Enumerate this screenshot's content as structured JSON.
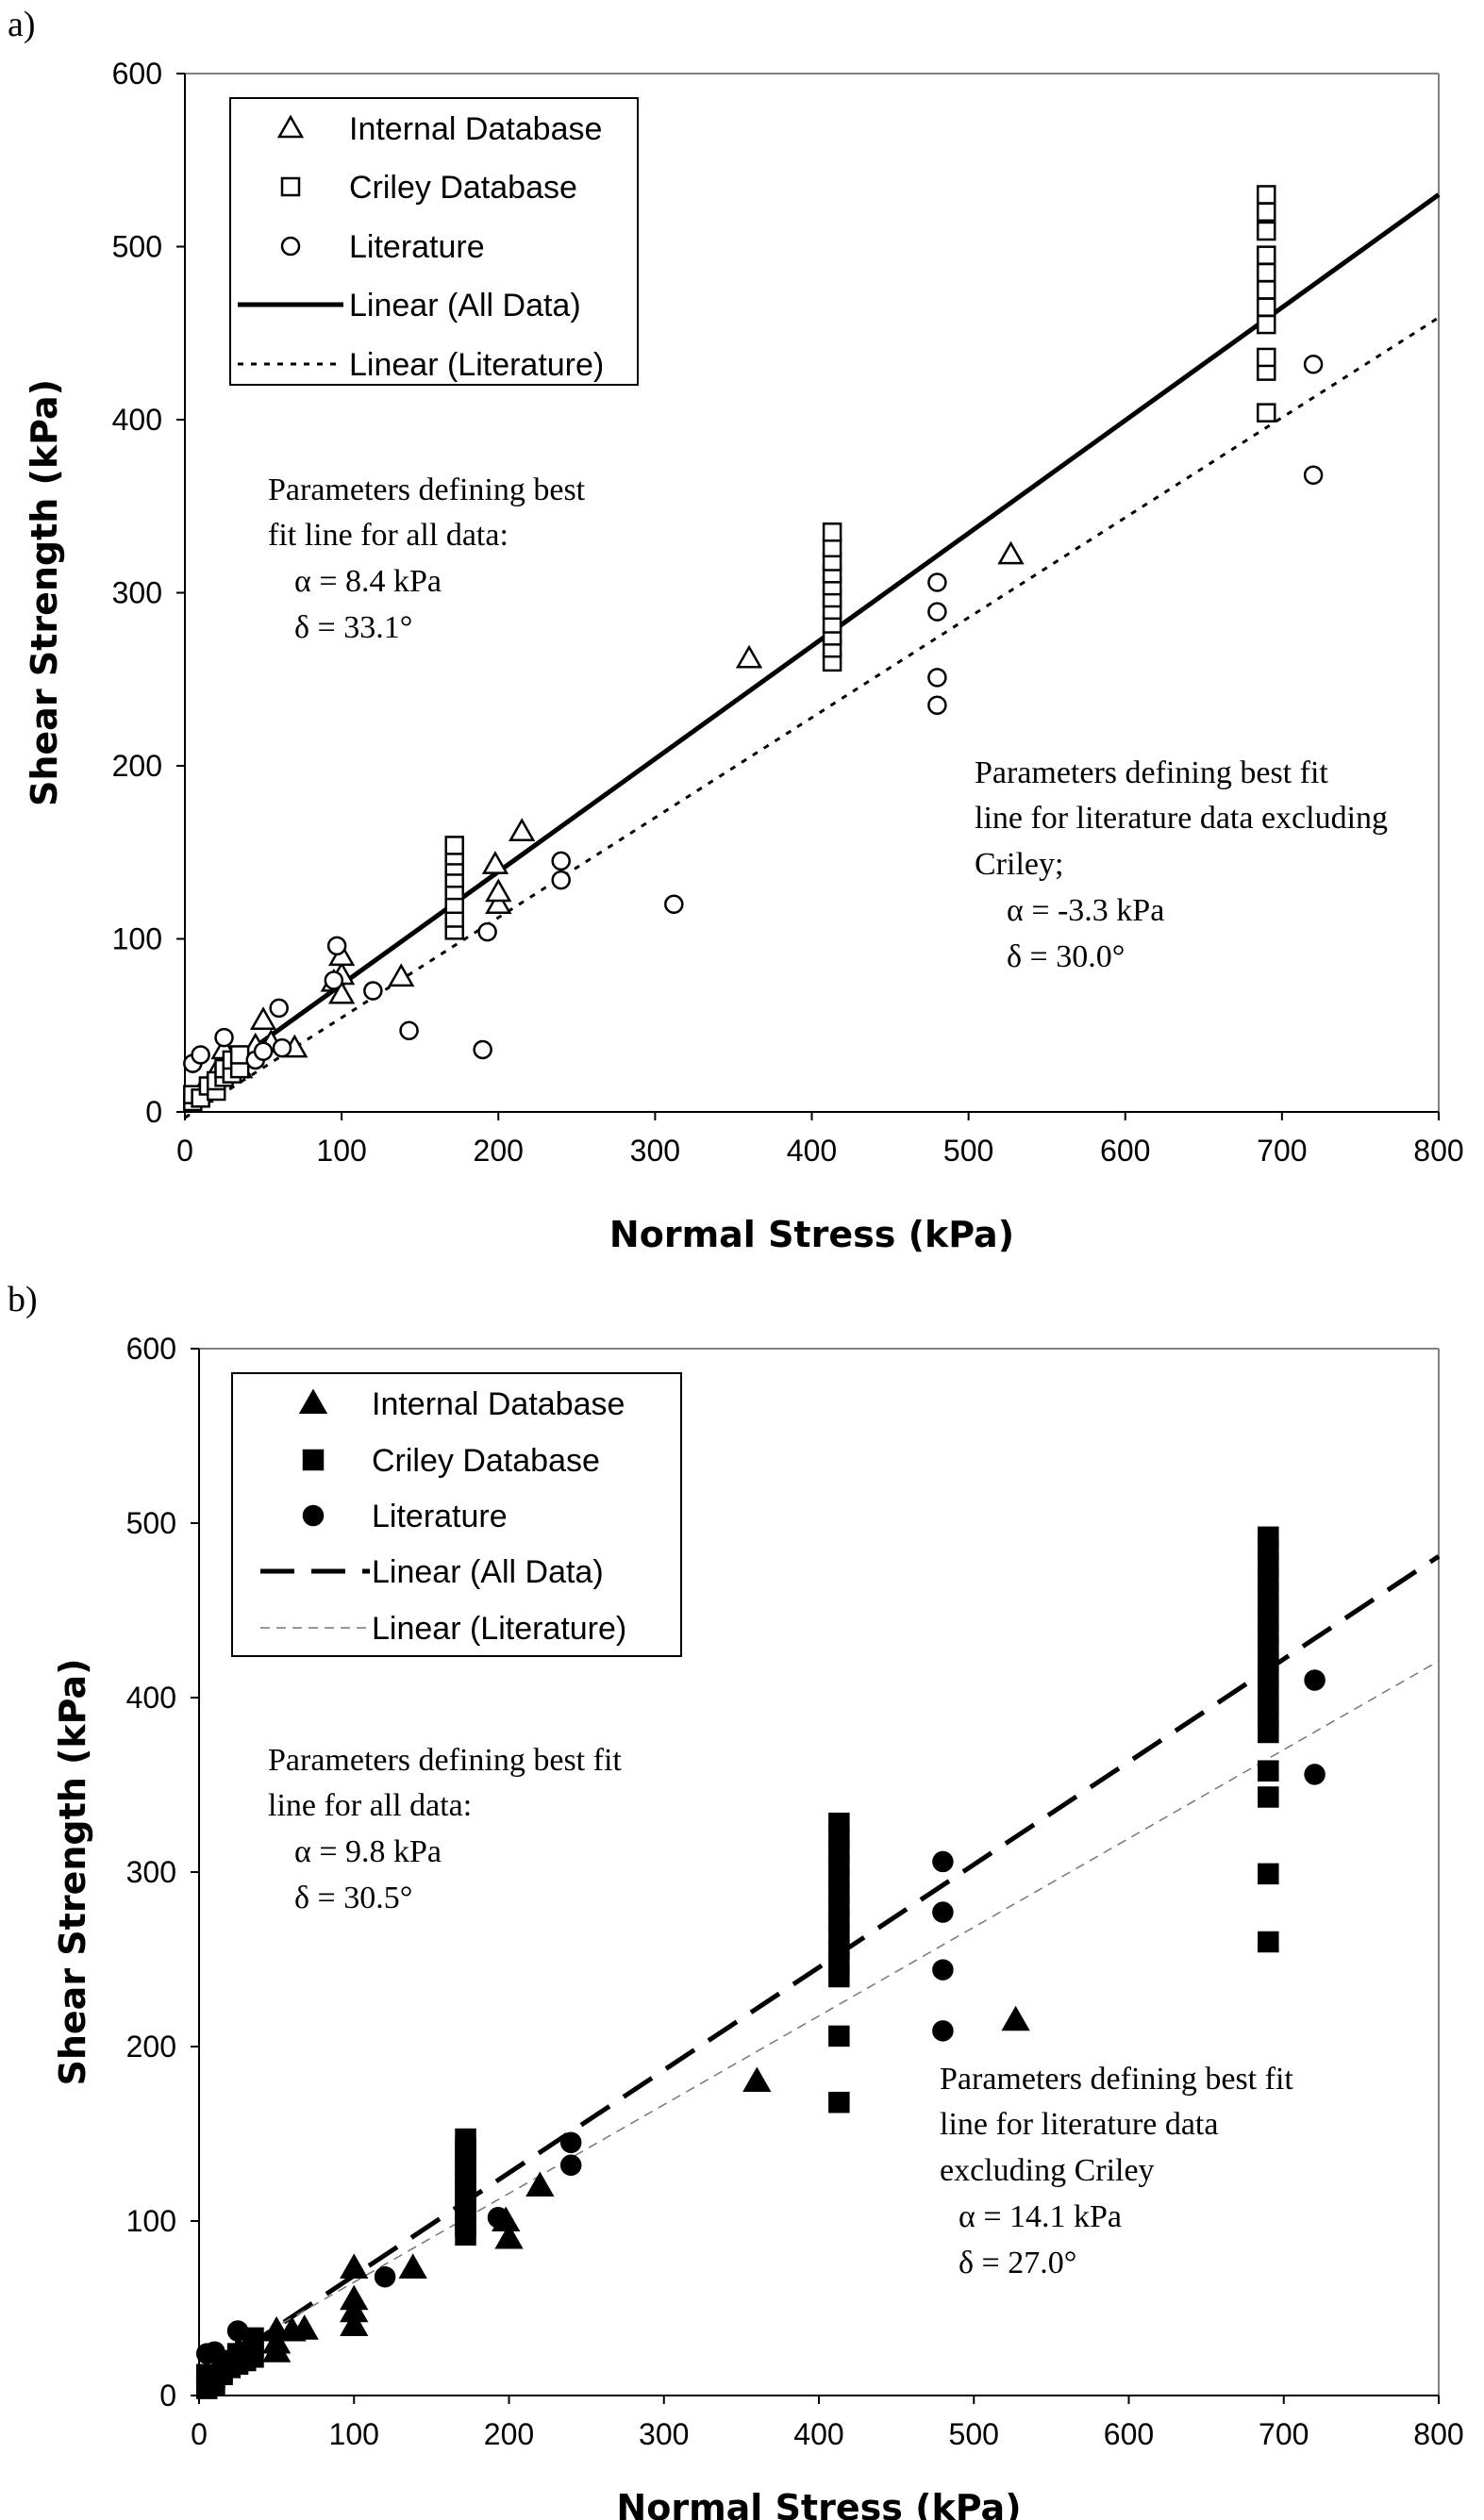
{
  "chart_data": [
    {
      "panel_label": "a)",
      "type": "scatter",
      "xlabel": "Normal Stress (kPa)",
      "ylabel": "Shear Strength (kPa)",
      "xlim": [
        0,
        800
      ],
      "ylim": [
        0,
        600
      ],
      "x_ticks": [
        "0",
        "100",
        "200",
        "300",
        "400",
        "500",
        "600",
        "700",
        "800"
      ],
      "y_ticks": [
        "0",
        "100",
        "200",
        "300",
        "400",
        "500",
        "600"
      ],
      "grid": false,
      "legend_position": "top-left",
      "legend": [
        "Internal Database",
        "Criley Database",
        "Literature",
        "Linear (All Data)",
        "Linear (Literature)"
      ],
      "series": [
        {
          "name": "Internal Database",
          "marker": "open-triangle",
          "points": [
            [
              10,
              11
            ],
            [
              20,
              23
            ],
            [
              25,
              36
            ],
            [
              30,
              28
            ],
            [
              35,
              25
            ],
            [
              45,
              38
            ],
            [
              50,
              53
            ],
            [
              55,
              40
            ],
            [
              70,
              37
            ],
            [
              95,
              75
            ],
            [
              100,
              68
            ],
            [
              100,
              79
            ],
            [
              100,
              90
            ],
            [
              138,
              78
            ],
            [
              198,
              143
            ],
            [
              200,
              120
            ],
            [
              200,
              127
            ],
            [
              215,
              162
            ],
            [
              360,
              262
            ],
            [
              527,
              322
            ]
          ]
        },
        {
          "name": "Criley Database",
          "marker": "open-square",
          "points": [
            [
              5,
              6
            ],
            [
              5,
              10
            ],
            [
              10,
              8
            ],
            [
              15,
              15
            ],
            [
              20,
              12
            ],
            [
              20,
              18
            ],
            [
              25,
              20
            ],
            [
              25,
              25
            ],
            [
              30,
              22
            ],
            [
              30,
              30
            ],
            [
              35,
              25
            ],
            [
              35,
              33
            ],
            [
              172,
              105
            ],
            [
              172,
              112
            ],
            [
              172,
              120
            ],
            [
              172,
              128
            ],
            [
              172,
              135
            ],
            [
              172,
              142
            ],
            [
              172,
              148
            ],
            [
              172,
              154
            ],
            [
              413,
              260
            ],
            [
              413,
              268
            ],
            [
              413,
              275
            ],
            [
              413,
              282
            ],
            [
              413,
              290
            ],
            [
              413,
              297
            ],
            [
              413,
              304
            ],
            [
              413,
              311
            ],
            [
              413,
              318
            ],
            [
              413,
              326
            ],
            [
              413,
              335
            ],
            [
              690,
              404
            ],
            [
              690,
              428
            ],
            [
              690,
              436
            ],
            [
              690,
              455
            ],
            [
              690,
              465
            ],
            [
              690,
              475
            ],
            [
              690,
              485
            ],
            [
              690,
              495
            ],
            [
              690,
              509
            ],
            [
              690,
              520
            ],
            [
              690,
              530
            ]
          ]
        },
        {
          "name": "Literature",
          "marker": "open-circle",
          "points": [
            [
              5,
              28
            ],
            [
              10,
              33
            ],
            [
              25,
              43
            ],
            [
              45,
              30
            ],
            [
              50,
              35
            ],
            [
              60,
              60
            ],
            [
              62,
              37
            ],
            [
              95,
              76
            ],
            [
              97,
              96
            ],
            [
              120,
              70
            ],
            [
              143,
              47
            ],
            [
              190,
              36
            ],
            [
              193,
              104
            ],
            [
              240,
              134
            ],
            [
              240,
              145
            ],
            [
              312,
              120
            ],
            [
              480,
              235
            ],
            [
              480,
              251
            ],
            [
              480,
              289
            ],
            [
              480,
              306
            ],
            [
              720,
              368
            ],
            [
              720,
              432
            ]
          ]
        }
      ],
      "fit_lines": [
        {
          "name": "Linear (All Data)",
          "style": "solid",
          "intercept": 8.4,
          "x_range": [
            0,
            800
          ],
          "y_range": [
            8.4,
            530
          ]
        },
        {
          "name": "Linear (Literature)",
          "style": "dotted",
          "intercept": -3.3,
          "x_range": [
            0,
            800
          ],
          "y_range": [
            -3.3,
            459
          ]
        }
      ],
      "annotations": [
        {
          "lines": [
            "Parameters defining best",
            "fit line for all data:",
            "α = 8.4 kPa",
            "δ  = 33.1°"
          ]
        },
        {
          "lines": [
            "Parameters defining     best fit",
            "line for literature data excluding",
            "Criley;",
            "α = -3.3 kPa",
            "δ  = 30.0°"
          ]
        }
      ]
    },
    {
      "panel_label": "b)",
      "type": "scatter",
      "xlabel": "Normal Stress (kPa)",
      "ylabel": "Shear Strength (kPa)",
      "xlim": [
        0,
        800
      ],
      "ylim": [
        0,
        600
      ],
      "x_ticks": [
        "0",
        "100",
        "200",
        "300",
        "400",
        "500",
        "600",
        "700",
        "800"
      ],
      "y_ticks": [
        "0",
        "100",
        "200",
        "300",
        "400",
        "500",
        "600"
      ],
      "grid": false,
      "legend_position": "top-left",
      "legend": [
        "Internal Database",
        "Criley Database",
        "Literature",
        "Linear (All Data)",
        "Linear (Literature)"
      ],
      "series": [
        {
          "name": "Internal Database",
          "marker": "filled-triangle",
          "points": [
            [
              50,
              25
            ],
            [
              50,
              30
            ],
            [
              50,
              37
            ],
            [
              60,
              37
            ],
            [
              68,
              38
            ],
            [
              100,
              40
            ],
            [
              100,
              48
            ],
            [
              100,
              55
            ],
            [
              100,
              73
            ],
            [
              138,
              73
            ],
            [
              198,
              100
            ],
            [
              200,
              90
            ],
            [
              220,
              120
            ],
            [
              360,
              180
            ],
            [
              527,
              215
            ]
          ]
        },
        {
          "name": "Criley Database",
          "marker": "filled-square",
          "points": [
            [
              5,
              4
            ],
            [
              5,
              8
            ],
            [
              5,
              12
            ],
            [
              10,
              6
            ],
            [
              10,
              10
            ],
            [
              15,
              12
            ],
            [
              15,
              18
            ],
            [
              20,
              16
            ],
            [
              20,
              20
            ],
            [
              25,
              18
            ],
            [
              25,
              24
            ],
            [
              30,
              20
            ],
            [
              30,
              25
            ],
            [
              35,
              22
            ],
            [
              35,
              28
            ],
            [
              35,
              33
            ],
            [
              172,
              92
            ],
            [
              172,
              97
            ],
            [
              172,
              102
            ],
            [
              172,
              107
            ],
            [
              172,
              112
            ],
            [
              172,
              117
            ],
            [
              172,
              122
            ],
            [
              172,
              127
            ],
            [
              172,
              132
            ],
            [
              172,
              137
            ],
            [
              172,
              142
            ],
            [
              172,
              147
            ],
            [
              413,
              168
            ],
            [
              413,
              206
            ],
            [
              413,
              240
            ],
            [
              413,
              248
            ],
            [
              413,
              256
            ],
            [
              413,
              264
            ],
            [
              413,
              272
            ],
            [
              413,
              280
            ],
            [
              413,
              288
            ],
            [
              413,
              296
            ],
            [
              413,
              304
            ],
            [
              413,
              312
            ],
            [
              413,
              320
            ],
            [
              413,
              328
            ],
            [
              690,
              260
            ],
            [
              690,
              299
            ],
            [
              690,
              343
            ],
            [
              690,
              358
            ],
            [
              690,
              380
            ],
            [
              690,
              388
            ],
            [
              690,
              396
            ],
            [
              690,
              404
            ],
            [
              690,
              412
            ],
            [
              690,
              420
            ],
            [
              690,
              428
            ],
            [
              690,
              436
            ],
            [
              690,
              444
            ],
            [
              690,
              452
            ],
            [
              690,
              460
            ],
            [
              690,
              468
            ],
            [
              690,
              476
            ],
            [
              690,
              484
            ],
            [
              690,
              492
            ]
          ]
        },
        {
          "name": "Literature",
          "marker": "filled-circle",
          "points": [
            [
              5,
              24
            ],
            [
              10,
              25
            ],
            [
              25,
              37
            ],
            [
              120,
              68
            ],
            [
              193,
              102
            ],
            [
              240,
              132
            ],
            [
              240,
              145
            ],
            [
              480,
              209
            ],
            [
              480,
              244
            ],
            [
              480,
              277
            ],
            [
              480,
              306
            ],
            [
              720,
              356
            ],
            [
              720,
              410
            ]
          ]
        }
      ],
      "fit_lines": [
        {
          "name": "Linear (All Data)",
          "style": "dashed",
          "intercept": 9.8,
          "x_range": [
            0,
            800
          ],
          "y_range": [
            9.8,
            481
          ]
        },
        {
          "name": "Linear (Literature)",
          "style": "thin-dashed",
          "intercept": 14.1,
          "x_range": [
            0,
            800
          ],
          "y_range": [
            14.1,
            421
          ]
        }
      ],
      "annotations": [
        {
          "lines": [
            "Parameters defining best fit",
            "line for all data:",
            "α = 9.8 kPa",
            "δ  = 30.5°"
          ]
        },
        {
          "lines": [
            "Parameters defining best fit",
            "line for literature data",
            "excluding Criley",
            "α = 14.1 kPa",
            "δ  = 27.0°"
          ]
        }
      ]
    }
  ]
}
